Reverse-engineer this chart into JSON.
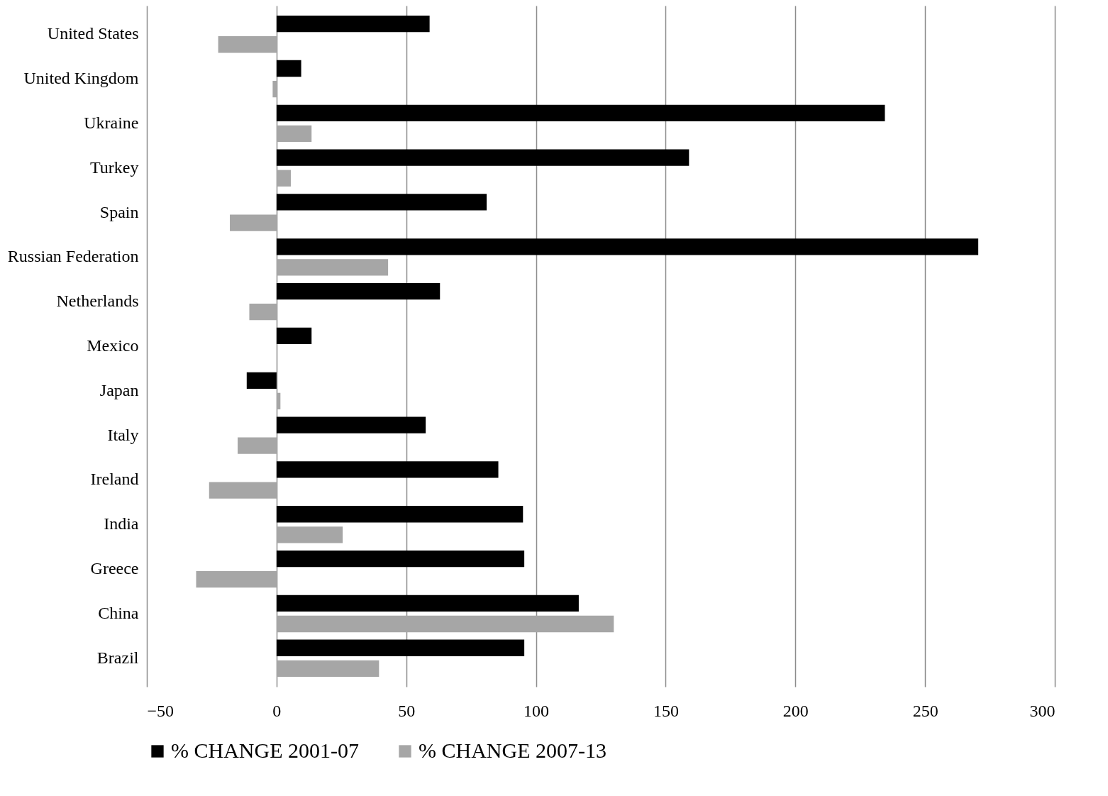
{
  "chart_data": {
    "type": "bar",
    "orientation": "horizontal",
    "categories": [
      "United States",
      "United Kingdom",
      "Ukraine",
      "Turkey",
      "Spain",
      "Russian Federation",
      "Netherlands",
      "Mexico",
      "Japan",
      "Italy",
      "Ireland",
      "India",
      "Greece",
      "China",
      "Brazil"
    ],
    "series": [
      {
        "name": "% CHANGE 2001-07",
        "color": "#000000",
        "values": [
          59,
          9.5,
          234.5,
          159,
          81,
          270.5,
          63,
          13.5,
          -11.5,
          57.5,
          85.5,
          95,
          95.5,
          116.5,
          95.5
        ]
      },
      {
        "name": "% CHANGE 2007-13",
        "color": "#a6a6a6",
        "values": [
          -22.5,
          -1.5,
          13.5,
          5.5,
          -18,
          43,
          -10.5,
          null,
          1.5,
          -15,
          -26,
          25.5,
          -31,
          130,
          39.5
        ]
      }
    ],
    "xlim": [
      -50,
      300
    ],
    "xticks": [
      -50,
      0,
      50,
      100,
      150,
      200,
      250,
      300
    ],
    "grid": "x",
    "legend": "bottom"
  }
}
